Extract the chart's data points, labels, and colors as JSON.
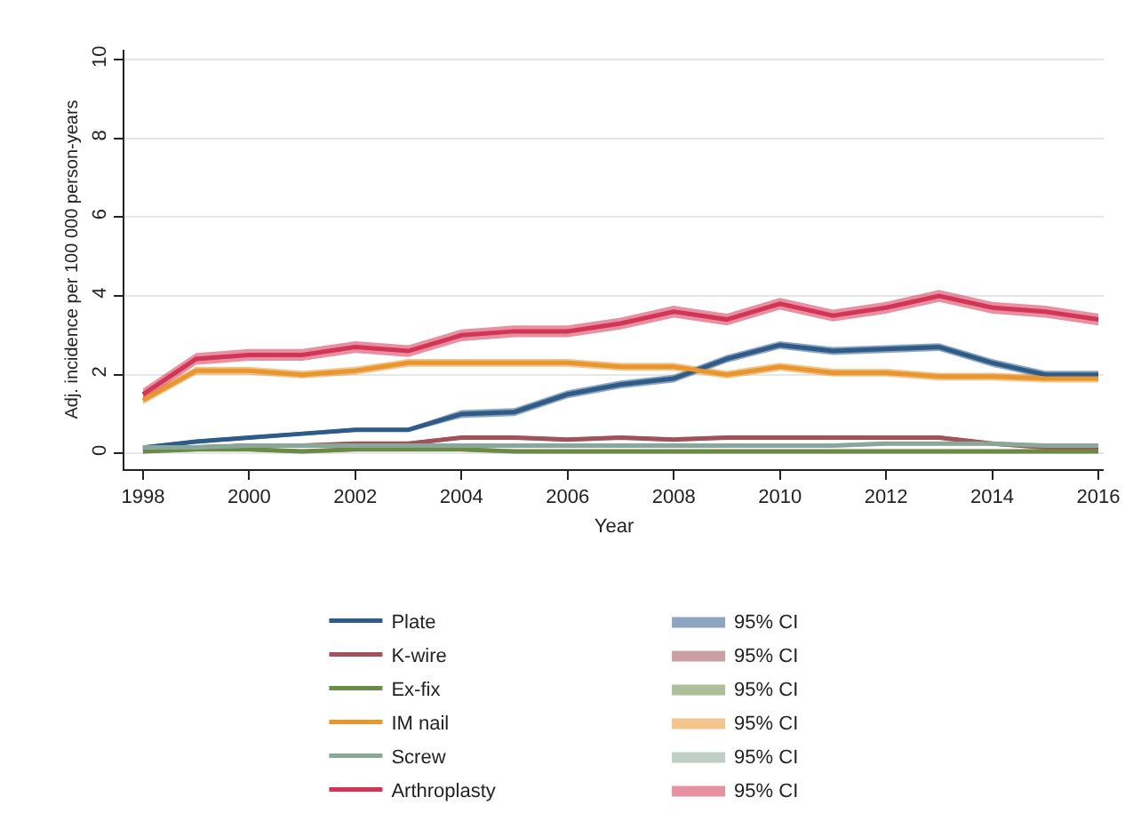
{
  "chart_data": {
    "type": "line",
    "xlabel": "Year",
    "ylabel": "Adj. incidence per 100 000 person-years",
    "x": [
      1998,
      1999,
      2000,
      2001,
      2002,
      2003,
      2004,
      2005,
      2006,
      2007,
      2008,
      2009,
      2010,
      2011,
      2012,
      2013,
      2014,
      2015,
      2016
    ],
    "xlim": [
      1997.65,
      2016.1
    ],
    "xticks": [
      1998,
      2000,
      2002,
      2004,
      2006,
      2008,
      2010,
      2012,
      2014,
      2016
    ],
    "ylim": [
      -0.4,
      10.25
    ],
    "yticks": [
      0,
      2,
      4,
      6,
      8,
      10
    ],
    "grid": "y",
    "legend": "bottom",
    "line_style": "solid",
    "annotations": [
      "95% CI"
    ],
    "series": [
      {
        "name": "Plate",
        "color": "#2f5b88",
        "values": [
          0.15,
          0.3,
          0.4,
          0.5,
          0.6,
          0.6,
          1.0,
          1.05,
          1.5,
          1.75,
          1.9,
          2.4,
          2.75,
          2.6,
          2.65,
          2.7,
          2.3,
          2.0,
          2.0
        ],
        "lower": [
          0.1,
          0.25,
          0.35,
          0.45,
          0.55,
          0.55,
          0.9,
          0.95,
          1.4,
          1.65,
          1.8,
          2.3,
          2.65,
          2.5,
          2.55,
          2.6,
          2.2,
          1.9,
          1.9
        ],
        "upper": [
          0.2,
          0.35,
          0.45,
          0.55,
          0.65,
          0.65,
          1.1,
          1.15,
          1.6,
          1.85,
          2.0,
          2.5,
          2.85,
          2.7,
          2.75,
          2.8,
          2.4,
          2.1,
          2.1
        ]
      },
      {
        "name": "K-wire",
        "color": "#a0525a",
        "values": [
          0.1,
          0.15,
          0.2,
          0.2,
          0.25,
          0.25,
          0.4,
          0.4,
          0.35,
          0.4,
          0.35,
          0.4,
          0.4,
          0.4,
          0.4,
          0.4,
          0.25,
          0.15,
          0.15
        ],
        "lower": [
          0.05,
          0.1,
          0.15,
          0.15,
          0.2,
          0.2,
          0.35,
          0.35,
          0.3,
          0.35,
          0.3,
          0.35,
          0.35,
          0.35,
          0.35,
          0.35,
          0.2,
          0.1,
          0.1
        ],
        "upper": [
          0.15,
          0.2,
          0.25,
          0.25,
          0.3,
          0.3,
          0.45,
          0.45,
          0.4,
          0.45,
          0.4,
          0.45,
          0.45,
          0.45,
          0.45,
          0.45,
          0.3,
          0.2,
          0.2
        ]
      },
      {
        "name": "Ex-fix",
        "color": "#6a8a45",
        "values": [
          0.05,
          0.1,
          0.1,
          0.05,
          0.1,
          0.1,
          0.1,
          0.05,
          0.05,
          0.05,
          0.05,
          0.05,
          0.05,
          0.05,
          0.05,
          0.05,
          0.05,
          0.05,
          0.05
        ],
        "lower": [
          0.0,
          0.05,
          0.05,
          0.0,
          0.05,
          0.05,
          0.05,
          0.0,
          0.0,
          0.0,
          0.0,
          0.0,
          0.0,
          0.0,
          0.0,
          0.0,
          0.0,
          0.0,
          0.0
        ],
        "upper": [
          0.1,
          0.15,
          0.15,
          0.1,
          0.15,
          0.15,
          0.15,
          0.1,
          0.1,
          0.1,
          0.1,
          0.1,
          0.1,
          0.1,
          0.1,
          0.1,
          0.1,
          0.1,
          0.1
        ]
      },
      {
        "name": "IM nail",
        "color": "#e8962e",
        "values": [
          1.35,
          2.1,
          2.1,
          2.0,
          2.1,
          2.3,
          2.3,
          2.3,
          2.3,
          2.2,
          2.2,
          2.0,
          2.2,
          2.05,
          2.05,
          1.95,
          1.95,
          1.9,
          1.9
        ],
        "lower": [
          1.25,
          2.0,
          2.0,
          1.9,
          2.0,
          2.2,
          2.2,
          2.2,
          2.2,
          2.1,
          2.1,
          1.9,
          2.1,
          1.95,
          1.95,
          1.85,
          1.85,
          1.8,
          1.8
        ],
        "upper": [
          1.45,
          2.2,
          2.2,
          2.1,
          2.2,
          2.4,
          2.4,
          2.4,
          2.4,
          2.3,
          2.3,
          2.1,
          2.3,
          2.15,
          2.15,
          2.05,
          2.05,
          2.0,
          2.0
        ]
      },
      {
        "name": "Screw",
        "color": "#8aa89a",
        "values": [
          0.15,
          0.15,
          0.2,
          0.2,
          0.2,
          0.2,
          0.2,
          0.2,
          0.2,
          0.2,
          0.2,
          0.2,
          0.2,
          0.2,
          0.25,
          0.25,
          0.25,
          0.2,
          0.2
        ],
        "lower": [
          0.1,
          0.1,
          0.15,
          0.15,
          0.15,
          0.15,
          0.15,
          0.15,
          0.15,
          0.15,
          0.15,
          0.15,
          0.15,
          0.15,
          0.2,
          0.2,
          0.2,
          0.15,
          0.15
        ],
        "upper": [
          0.2,
          0.2,
          0.25,
          0.25,
          0.25,
          0.25,
          0.25,
          0.25,
          0.25,
          0.25,
          0.25,
          0.25,
          0.25,
          0.25,
          0.3,
          0.3,
          0.3,
          0.25,
          0.25
        ]
      },
      {
        "name": "Arthroplasty",
        "color": "#d23556",
        "values": [
          1.5,
          2.4,
          2.5,
          2.5,
          2.7,
          2.6,
          3.0,
          3.1,
          3.1,
          3.3,
          3.6,
          3.4,
          3.8,
          3.5,
          3.7,
          4.0,
          3.7,
          3.6,
          3.4
        ],
        "lower": [
          1.35,
          2.25,
          2.35,
          2.35,
          2.55,
          2.45,
          2.85,
          2.95,
          2.95,
          3.15,
          3.45,
          3.25,
          3.65,
          3.35,
          3.55,
          3.85,
          3.55,
          3.45,
          3.25
        ],
        "upper": [
          1.65,
          2.55,
          2.65,
          2.65,
          2.85,
          2.75,
          3.15,
          3.25,
          3.25,
          3.45,
          3.75,
          3.55,
          3.95,
          3.65,
          3.85,
          4.15,
          3.85,
          3.75,
          3.55
        ]
      }
    ]
  }
}
